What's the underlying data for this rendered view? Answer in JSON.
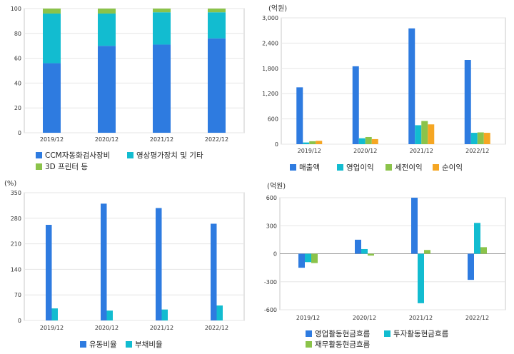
{
  "chart_data": [
    {
      "id": "revenue-mix",
      "type": "bar",
      "stacked": true,
      "unit_label": "",
      "categories": [
        "2019/12",
        "2020/12",
        "2021/12",
        "2022/12"
      ],
      "ylim": [
        0,
        100
      ],
      "yticks": [
        0,
        20,
        40,
        60,
        80,
        100
      ],
      "grid": true,
      "legend_position": "bottom",
      "series": [
        {
          "name": "CCM자동화검사장비",
          "color": "#2e7be0",
          "values": [
            56,
            70,
            71,
            76
          ]
        },
        {
          "name": "영상평가장치 및 기타",
          "color": "#12bcd0",
          "values": [
            40,
            26,
            26,
            21
          ]
        },
        {
          "name": "3D 프린터 등",
          "color": "#8bc34a",
          "values": [
            4,
            4,
            3,
            3
          ]
        }
      ]
    },
    {
      "id": "income",
      "type": "bar",
      "stacked": false,
      "unit_label": "(억원)",
      "categories": [
        "2019/12",
        "2020/12",
        "2021/12",
        "2022/12"
      ],
      "ylim": [
        0,
        3000
      ],
      "yticks": [
        0,
        600,
        1200,
        1800,
        2400,
        3000
      ],
      "ytick_labels": [
        "0",
        "600",
        "1,200",
        "1,800",
        "2,400",
        "3,000"
      ],
      "grid": true,
      "legend_position": "bottom",
      "series": [
        {
          "name": "매출액",
          "color": "#2e7be0",
          "values": [
            1350,
            1850,
            2750,
            2000
          ]
        },
        {
          "name": "영업이익",
          "color": "#12bcd0",
          "values": [
            40,
            140,
            450,
            270
          ]
        },
        {
          "name": "세전이익",
          "color": "#8bc34a",
          "values": [
            70,
            170,
            550,
            280
          ]
        },
        {
          "name": "순이익",
          "color": "#f5a623",
          "values": [
            80,
            120,
            470,
            270
          ]
        }
      ]
    },
    {
      "id": "ratios",
      "type": "bar",
      "stacked": false,
      "unit_label": "(%)",
      "categories": [
        "2019/12",
        "2020/12",
        "2021/12",
        "2022/12"
      ],
      "ylim": [
        0,
        350
      ],
      "yticks": [
        0,
        70,
        140,
        210,
        280,
        350
      ],
      "grid": true,
      "legend_position": "bottom",
      "series": [
        {
          "name": "유동비율",
          "color": "#2e7be0",
          "values": [
            262,
            320,
            308,
            265
          ]
        },
        {
          "name": "부채비율",
          "color": "#12bcd0",
          "values": [
            33,
            27,
            30,
            41
          ]
        }
      ]
    },
    {
      "id": "cashflow",
      "type": "bar",
      "stacked": false,
      "unit_label": "(억원)",
      "categories": [
        "2019/12",
        "2020/12",
        "2021/12",
        "2022/12"
      ],
      "ylim": [
        -600,
        600
      ],
      "yticks": [
        -600,
        -300,
        0,
        300,
        600
      ],
      "grid": true,
      "legend_position": "bottom",
      "series": [
        {
          "name": "영업활동현금흐름",
          "color": "#2e7be0",
          "values": [
            -150,
            150,
            600,
            -280
          ]
        },
        {
          "name": "투자활동현금흐름",
          "color": "#12bcd0",
          "values": [
            -90,
            50,
            -530,
            330
          ]
        },
        {
          "name": "재무활동현금흐름",
          "color": "#8bc34a",
          "values": [
            -100,
            -20,
            40,
            70
          ]
        }
      ]
    }
  ]
}
